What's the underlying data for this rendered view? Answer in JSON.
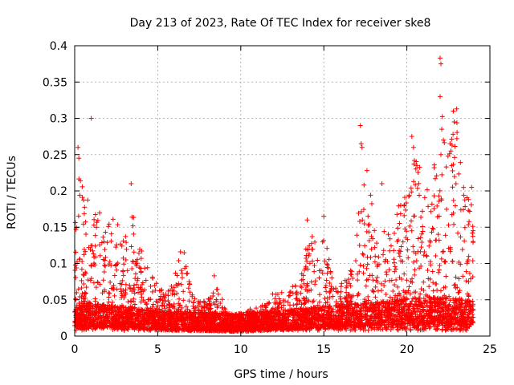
{
  "chart_data": {
    "type": "scatter",
    "title": "Day 213 of 2023, Rate Of TEC Index for receiver ske8",
    "xlabel": "GPS time / hours",
    "ylabel": "ROTI / TECUs",
    "xlim": [
      0,
      25
    ],
    "ylim": [
      0,
      0.4
    ],
    "grid": true,
    "marker": "plus",
    "series_color": "#ff0000",
    "x_ticks": [
      {
        "value": 0,
        "label": "0"
      },
      {
        "value": 5,
        "label": "5"
      },
      {
        "value": 10,
        "label": "10"
      },
      {
        "value": 15,
        "label": "15"
      },
      {
        "value": 20,
        "label": "20"
      },
      {
        "value": 25,
        "label": "25"
      }
    ],
    "y_ticks": [
      {
        "value": 0,
        "label": "0"
      },
      {
        "value": 0.05,
        "label": "0.05"
      },
      {
        "value": 0.1,
        "label": "0.1"
      },
      {
        "value": 0.15,
        "label": "0.15"
      },
      {
        "value": 0.2,
        "label": "0.2"
      },
      {
        "value": 0.25,
        "label": "0.25"
      },
      {
        "value": 0.3,
        "label": "0.3"
      },
      {
        "value": 0.35,
        "label": "0.35"
      },
      {
        "value": 0.4,
        "label": "0.4"
      }
    ],
    "envelope_hours": [
      0,
      0.25,
      0.5,
      1,
      1.5,
      2,
      2.5,
      3,
      3.5,
      4,
      4.5,
      5,
      5.5,
      6,
      6.5,
      7,
      7.5,
      8,
      8.5,
      9,
      9.5,
      10,
      10.5,
      11,
      11.5,
      12,
      12.5,
      13,
      13.5,
      14,
      14.5,
      15,
      15.5,
      16,
      16.5,
      17,
      17.5,
      18,
      18.5,
      19,
      19.5,
      20,
      20.5,
      21,
      21.5,
      22,
      22.5,
      23,
      23.5,
      24
    ],
    "envelope_base_roti": [
      0.025,
      0.03,
      0.03,
      0.028,
      0.026,
      0.025,
      0.024,
      0.022,
      0.022,
      0.02,
      0.018,
      0.017,
      0.016,
      0.016,
      0.016,
      0.015,
      0.015,
      0.015,
      0.014,
      0.014,
      0.013,
      0.013,
      0.014,
      0.015,
      0.016,
      0.017,
      0.018,
      0.019,
      0.02,
      0.021,
      0.022,
      0.023,
      0.024,
      0.025,
      0.026,
      0.027,
      0.028,
      0.029,
      0.03,
      0.031,
      0.032,
      0.034,
      0.035,
      0.035,
      0.036,
      0.036,
      0.035,
      0.034,
      0.032,
      0.03
    ],
    "envelope_peak_roti": [
      0.2,
      0.25,
      0.2,
      0.19,
      0.17,
      0.17,
      0.16,
      0.14,
      0.18,
      0.12,
      0.1,
      0.07,
      0.06,
      0.08,
      0.14,
      0.06,
      0.05,
      0.05,
      0.07,
      0.05,
      0.03,
      0.03,
      0.04,
      0.04,
      0.05,
      0.06,
      0.06,
      0.07,
      0.07,
      0.15,
      0.13,
      0.16,
      0.08,
      0.09,
      0.08,
      0.16,
      0.22,
      0.18,
      0.17,
      0.14,
      0.18,
      0.24,
      0.25,
      0.22,
      0.2,
      0.35,
      0.26,
      0.3,
      0.2,
      0.2
    ],
    "outliers": [
      {
        "x": 1.0,
        "y": 0.3
      },
      {
        "x": 0.2,
        "y": 0.26
      },
      {
        "x": 0.25,
        "y": 0.245
      },
      {
        "x": 3.4,
        "y": 0.21
      },
      {
        "x": 17.2,
        "y": 0.29
      },
      {
        "x": 17.25,
        "y": 0.265
      },
      {
        "x": 17.3,
        "y": 0.26
      },
      {
        "x": 17.6,
        "y": 0.228
      },
      {
        "x": 18.5,
        "y": 0.21
      },
      {
        "x": 20.3,
        "y": 0.275
      },
      {
        "x": 20.4,
        "y": 0.26
      },
      {
        "x": 22.0,
        "y": 0.383
      },
      {
        "x": 22.05,
        "y": 0.375
      },
      {
        "x": 22.0,
        "y": 0.33
      },
      {
        "x": 22.1,
        "y": 0.285
      },
      {
        "x": 22.2,
        "y": 0.27
      },
      {
        "x": 22.05,
        "y": 0.25
      },
      {
        "x": 22.6,
        "y": 0.265
      },
      {
        "x": 22.7,
        "y": 0.235
      },
      {
        "x": 22.8,
        "y": 0.31
      },
      {
        "x": 22.85,
        "y": 0.295
      },
      {
        "x": 23.0,
        "y": 0.313
      },
      {
        "x": 23.9,
        "y": 0.205
      },
      {
        "x": 8.4,
        "y": 0.083
      },
      {
        "x": 14.0,
        "y": 0.16
      },
      {
        "x": 15.0,
        "y": 0.165
      }
    ]
  }
}
